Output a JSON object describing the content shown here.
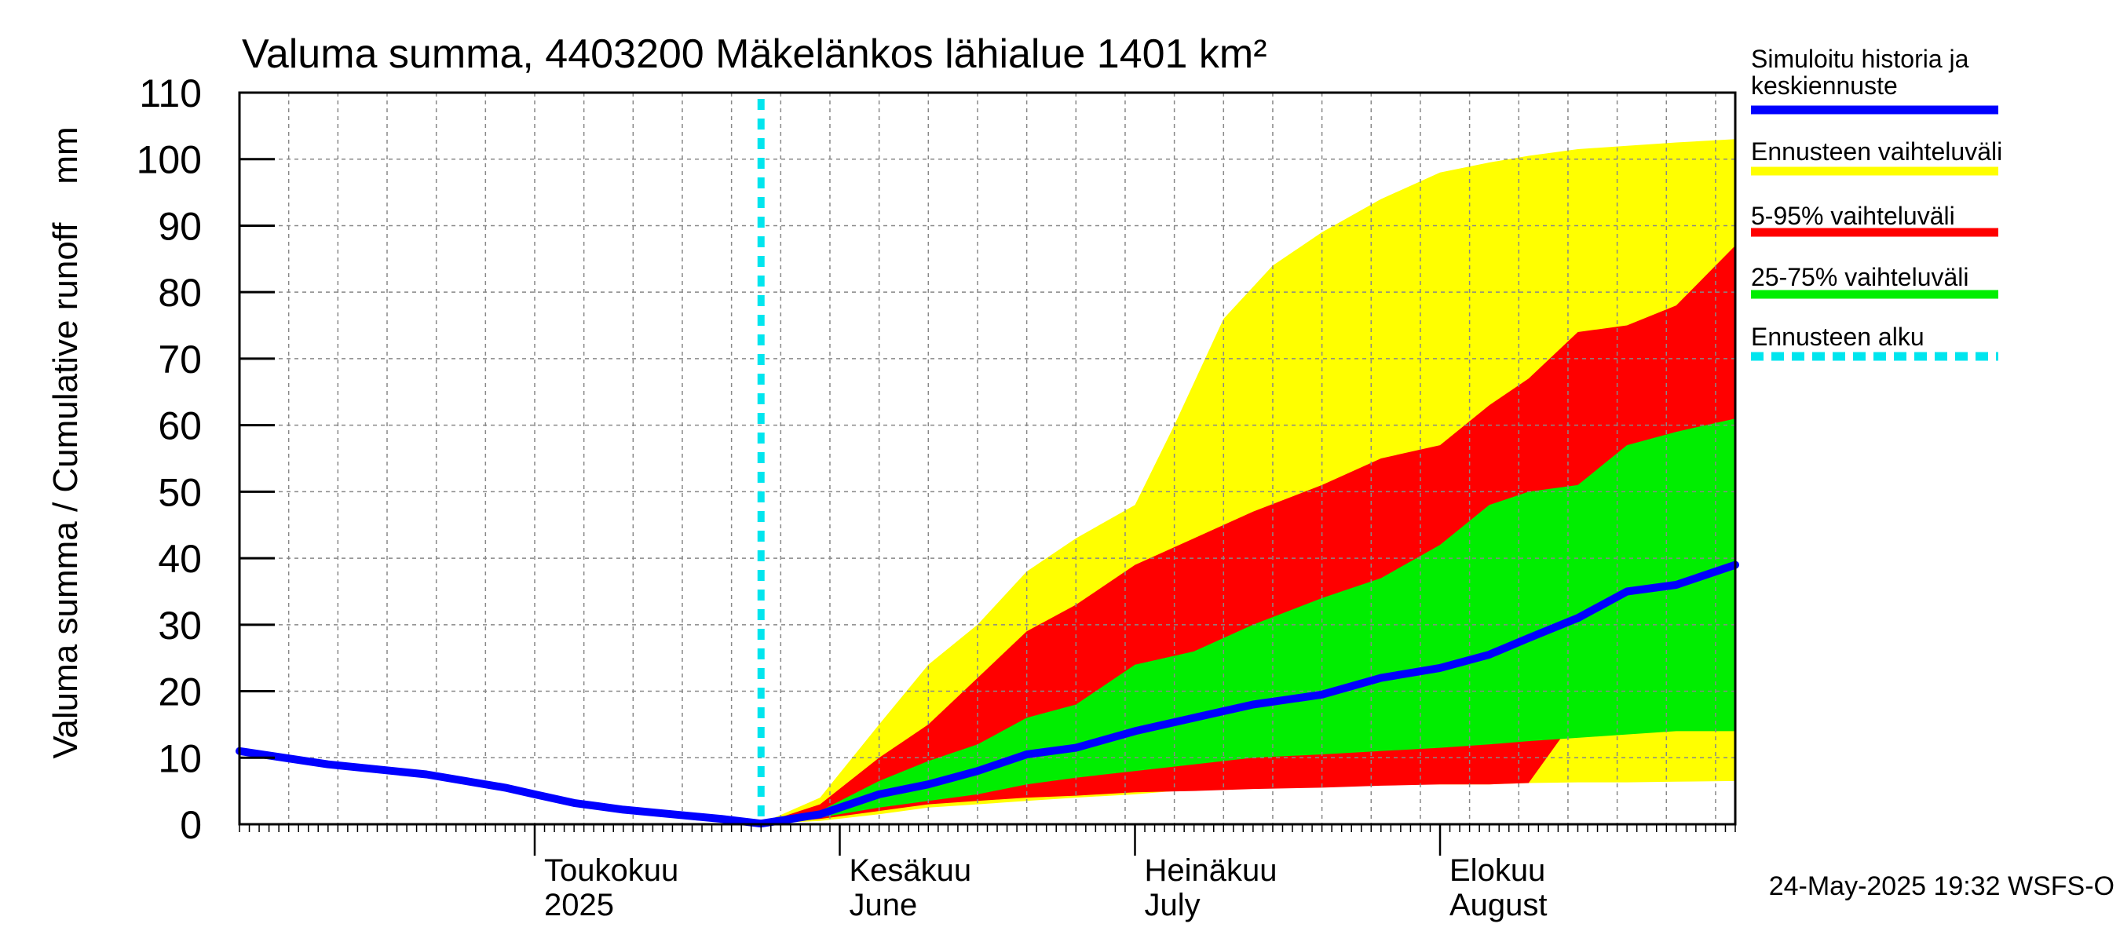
{
  "chart_data": {
    "type": "area",
    "title": "Valuma summa, 4403200 Mäkelänkos lähialue 1401 km²",
    "ylabel": "Valuma summa / Cumulative runoff    mm",
    "ylim": [
      0,
      110
    ],
    "yticks": [
      0,
      10,
      20,
      30,
      40,
      50,
      60,
      70,
      80,
      90,
      100,
      110
    ],
    "xlim": [
      "2025-04-01",
      "2025-08-31"
    ],
    "month_labels": [
      {
        "date": "2025-05-01",
        "line1": "Toukokuu",
        "line2": "2025"
      },
      {
        "date": "2025-06-01",
        "line1": "Kesäkuu",
        "line2": "June"
      },
      {
        "date": "2025-07-01",
        "line1": "Heinäkuu",
        "line2": "July"
      },
      {
        "date": "2025-08-01",
        "line1": "Elokuu",
        "line2": "August"
      }
    ],
    "forecast_start": "2025-05-24",
    "grid": true,
    "legend_position": "right",
    "legend": [
      {
        "label": "Simuloitu historia ja keskiennuste",
        "color": "#0000ff",
        "style": "solid"
      },
      {
        "label": "Ennusteen vaihteluväli",
        "color": "#ffff00",
        "style": "solid"
      },
      {
        "label": "5-95% vaihteluväli",
        "color": "#ff0000",
        "style": "solid"
      },
      {
        "label": "25-75% vaihteluväli",
        "color": "#00ee00",
        "style": "solid"
      },
      {
        "label": "Ennusteen alku",
        "color": "#00e5ee",
        "style": "dashed"
      }
    ],
    "footer": "24-May-2025 19:32 WSFS-O",
    "series": {
      "history": {
        "name": "Simuloitu historia ja keskiennuste",
        "x": [
          "2025-04-01",
          "2025-04-10",
          "2025-04-20",
          "2025-04-28",
          "2025-05-01",
          "2025-05-05",
          "2025-05-10",
          "2025-05-15",
          "2025-05-20",
          "2025-05-24"
        ],
        "y": [
          11.0,
          9.0,
          7.5,
          5.5,
          4.5,
          3.2,
          2.2,
          1.5,
          0.8,
          0.1
        ]
      },
      "median": {
        "x": [
          "2025-05-24",
          "2025-05-30",
          "2025-06-05",
          "2025-06-10",
          "2025-06-15",
          "2025-06-20",
          "2025-06-25",
          "2025-07-01",
          "2025-07-07",
          "2025-07-13",
          "2025-07-20",
          "2025-07-26",
          "2025-08-01",
          "2025-08-06",
          "2025-08-10",
          "2025-08-15",
          "2025-08-20",
          "2025-08-25",
          "2025-08-31"
        ],
        "y": [
          0.1,
          1.5,
          4.5,
          6.0,
          8.0,
          10.5,
          11.5,
          14.0,
          16.0,
          18.0,
          19.5,
          22.0,
          23.5,
          25.5,
          28.0,
          31.0,
          35.0,
          36.0,
          39.0
        ]
      },
      "p25_75": {
        "x": [
          "2025-05-24",
          "2025-05-30",
          "2025-06-05",
          "2025-06-10",
          "2025-06-15",
          "2025-06-20",
          "2025-06-25",
          "2025-07-01",
          "2025-07-07",
          "2025-07-13",
          "2025-07-20",
          "2025-07-26",
          "2025-08-01",
          "2025-08-06",
          "2025-08-10",
          "2025-08-15",
          "2025-08-20",
          "2025-08-25",
          "2025-08-31"
        ],
        "upper": [
          0.1,
          2.0,
          6.5,
          9.5,
          12.0,
          16.0,
          18.0,
          24.0,
          26.0,
          30.0,
          34.0,
          37.0,
          42.0,
          48.0,
          50.0,
          51.0,
          57.0,
          59.0,
          61.0
        ],
        "lower": [
          0.1,
          1.0,
          2.5,
          3.5,
          4.5,
          6.0,
          7.0,
          8.0,
          9.0,
          10.0,
          10.5,
          11.0,
          11.5,
          12.0,
          12.5,
          13.0,
          13.5,
          14.0,
          14.0
        ]
      },
      "p5_95": {
        "x": [
          "2025-05-24",
          "2025-05-30",
          "2025-06-05",
          "2025-06-10",
          "2025-06-15",
          "2025-06-20",
          "2025-06-25",
          "2025-07-01",
          "2025-07-07",
          "2025-07-13",
          "2025-07-20",
          "2025-07-26",
          "2025-08-01",
          "2025-08-06",
          "2025-08-10",
          "2025-08-15",
          "2025-08-20",
          "2025-08-25",
          "2025-08-31"
        ],
        "upper": [
          0.1,
          3.0,
          10.0,
          15.0,
          22.0,
          29.0,
          33.0,
          39.0,
          43.0,
          47.0,
          51.0,
          55.0,
          57.0,
          63.0,
          67.0,
          74.0,
          75.0,
          78.0,
          87.0
        ],
        "lower": [
          0.1,
          0.8,
          2.0,
          3.0,
          3.5,
          4.0,
          4.3,
          4.8,
          5.0,
          5.3,
          5.5,
          5.8,
          6.0,
          6.0,
          6.2,
          16.5,
          17.0,
          17.5,
          18.0
        ]
      },
      "range": {
        "x": [
          "2025-05-24",
          "2025-05-30",
          "2025-06-05",
          "2025-06-10",
          "2025-06-15",
          "2025-06-20",
          "2025-06-25",
          "2025-07-01",
          "2025-07-05",
          "2025-07-10",
          "2025-07-15",
          "2025-07-20",
          "2025-07-26",
          "2025-08-01",
          "2025-08-06",
          "2025-08-10",
          "2025-08-15",
          "2025-08-20",
          "2025-08-25",
          "2025-08-31"
        ],
        "upper": [
          0.1,
          4.0,
          15.0,
          24.0,
          30.0,
          38.0,
          43.0,
          48.0,
          60.0,
          76.0,
          84.0,
          89.0,
          94.0,
          98.0,
          99.5,
          100.5,
          101.5,
          102.0,
          102.5,
          103.0
        ],
        "lower": [
          0.1,
          0.5,
          1.5,
          2.5,
          3.0,
          3.5,
          4.0,
          4.5,
          5.0,
          5.2,
          5.5,
          5.7,
          6.0,
          6.0,
          6.0,
          6.2,
          6.3,
          6.3,
          6.4,
          6.5
        ]
      }
    }
  }
}
